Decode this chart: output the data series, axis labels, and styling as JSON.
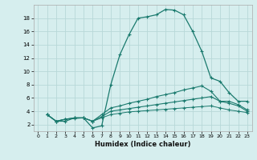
{
  "xlabel": "Humidex (Indice chaleur)",
  "bg_color": "#d6eeee",
  "line_color": "#1a7a6e",
  "grid_color": "#b8d8d8",
  "xlim": [
    -0.5,
    23.5
  ],
  "ylim": [
    1.0,
    20.0
  ],
  "xticks": [
    0,
    1,
    2,
    3,
    4,
    5,
    6,
    7,
    8,
    9,
    10,
    11,
    12,
    13,
    14,
    15,
    16,
    17,
    18,
    19,
    20,
    21,
    22,
    23
  ],
  "yticks": [
    2,
    4,
    6,
    8,
    10,
    12,
    14,
    16,
    18
  ],
  "series1_x": [
    1,
    2,
    3,
    4,
    5,
    6,
    7,
    8,
    9,
    10,
    11,
    12,
    13,
    14,
    15,
    16,
    17,
    18,
    19,
    20,
    21,
    22,
    23
  ],
  "series1_y": [
    3.5,
    2.5,
    2.5,
    3.0,
    3.0,
    1.5,
    1.8,
    8.0,
    12.5,
    15.5,
    18.0,
    18.2,
    18.5,
    19.3,
    19.2,
    18.5,
    16.0,
    13.0,
    9.0,
    8.5,
    6.8,
    5.5,
    5.5
  ],
  "series2_x": [
    1,
    2,
    3,
    4,
    5,
    6,
    7,
    8,
    9,
    10,
    11,
    12,
    13,
    14,
    15,
    16,
    17,
    18,
    19,
    20,
    21,
    22,
    23
  ],
  "series2_y": [
    3.5,
    2.5,
    2.8,
    3.0,
    3.0,
    2.5,
    3.5,
    4.5,
    4.8,
    5.2,
    5.5,
    5.8,
    6.2,
    6.5,
    6.8,
    7.2,
    7.5,
    7.8,
    7.0,
    5.5,
    5.5,
    5.0,
    4.2
  ],
  "series3_x": [
    1,
    2,
    3,
    4,
    5,
    6,
    7,
    8,
    9,
    10,
    11,
    12,
    13,
    14,
    15,
    16,
    17,
    18,
    19,
    20,
    21,
    22,
    23
  ],
  "series3_y": [
    3.5,
    2.5,
    2.8,
    3.0,
    3.0,
    2.5,
    3.2,
    4.0,
    4.2,
    4.4,
    4.6,
    4.8,
    5.0,
    5.2,
    5.4,
    5.6,
    5.8,
    6.0,
    6.2,
    5.5,
    5.2,
    4.8,
    4.0
  ],
  "series4_x": [
    1,
    2,
    3,
    4,
    5,
    6,
    7,
    8,
    9,
    10,
    11,
    12,
    13,
    14,
    15,
    16,
    17,
    18,
    19,
    20,
    21,
    22,
    23
  ],
  "series4_y": [
    3.5,
    2.5,
    2.8,
    2.9,
    3.0,
    2.5,
    3.0,
    3.5,
    3.7,
    3.9,
    4.0,
    4.1,
    4.2,
    4.3,
    4.4,
    4.5,
    4.6,
    4.7,
    4.8,
    4.5,
    4.2,
    4.0,
    3.8
  ]
}
